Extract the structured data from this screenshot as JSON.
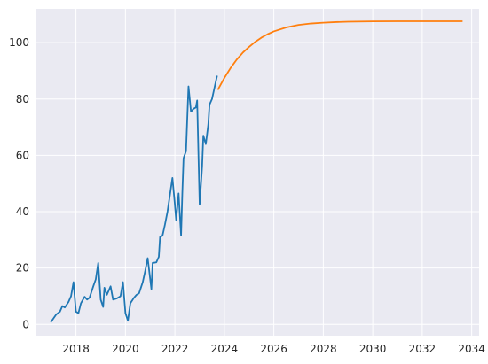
{
  "chart_data": {
    "type": "line",
    "title": "",
    "xlabel": "",
    "ylabel": "",
    "xlim": [
      2016.4,
      2034.3
    ],
    "ylim": [
      -4,
      112
    ],
    "grid": true,
    "legend": "none",
    "x_ticks": [
      2018,
      2020,
      2022,
      2024,
      2026,
      2028,
      2030,
      2032,
      2034
    ],
    "y_ticks": [
      0,
      20,
      40,
      60,
      80,
      100
    ],
    "series": [
      {
        "color": "#1f77b4",
        "points": [
          [
            2017.0,
            1
          ],
          [
            2017.2,
            3.5
          ],
          [
            2017.35,
            4.5
          ],
          [
            2017.45,
            6.5
          ],
          [
            2017.55,
            6
          ],
          [
            2017.7,
            8
          ],
          [
            2017.8,
            10
          ],
          [
            2017.9,
            15
          ],
          [
            2018.0,
            4.5
          ],
          [
            2018.1,
            4
          ],
          [
            2018.2,
            7.5
          ],
          [
            2018.35,
            9.8
          ],
          [
            2018.45,
            8.8
          ],
          [
            2018.55,
            9.5
          ],
          [
            2018.7,
            13.5
          ],
          [
            2018.8,
            16
          ],
          [
            2018.9,
            21.8
          ],
          [
            2019.0,
            8.8
          ],
          [
            2019.1,
            6.2
          ],
          [
            2019.15,
            13
          ],
          [
            2019.25,
            10.5
          ],
          [
            2019.4,
            13.5
          ],
          [
            2019.5,
            8.8
          ],
          [
            2019.65,
            9.2
          ],
          [
            2019.8,
            10
          ],
          [
            2019.9,
            15
          ],
          [
            2020.0,
            4
          ],
          [
            2020.1,
            1.3
          ],
          [
            2020.2,
            7.5
          ],
          [
            2020.35,
            9.5
          ],
          [
            2020.45,
            10.5
          ],
          [
            2020.55,
            11
          ],
          [
            2020.7,
            15
          ],
          [
            2020.8,
            19
          ],
          [
            2020.9,
            23.5
          ],
          [
            2021.05,
            12.5
          ],
          [
            2021.1,
            21.8
          ],
          [
            2021.25,
            22
          ],
          [
            2021.35,
            24
          ],
          [
            2021.4,
            31
          ],
          [
            2021.5,
            31.5
          ],
          [
            2021.6,
            35.5
          ],
          [
            2021.7,
            40
          ],
          [
            2021.8,
            46
          ],
          [
            2021.9,
            52
          ],
          [
            2022.0,
            42.5
          ],
          [
            2022.05,
            37
          ],
          [
            2022.15,
            46.5
          ],
          [
            2022.25,
            31.5
          ],
          [
            2022.3,
            46.5
          ],
          [
            2022.35,
            59
          ],
          [
            2022.45,
            61.5
          ],
          [
            2022.55,
            84.5
          ],
          [
            2022.65,
            75.5
          ],
          [
            2022.75,
            76.5
          ],
          [
            2022.85,
            77
          ],
          [
            2022.9,
            79.5
          ],
          [
            2023.0,
            42.5
          ],
          [
            2023.1,
            56
          ],
          [
            2023.15,
            67
          ],
          [
            2023.25,
            64
          ],
          [
            2023.35,
            71
          ],
          [
            2023.4,
            78
          ],
          [
            2023.5,
            80
          ],
          [
            2023.6,
            84
          ],
          [
            2023.7,
            88
          ]
        ]
      },
      {
        "color": "#ff7f0e",
        "points": [
          [
            2023.75,
            83.5
          ],
          [
            2024.0,
            87.5
          ],
          [
            2024.25,
            91
          ],
          [
            2024.5,
            94
          ],
          [
            2024.75,
            96.5
          ],
          [
            2025.0,
            98.5
          ],
          [
            2025.25,
            100.3
          ],
          [
            2025.5,
            101.8
          ],
          [
            2025.75,
            103
          ],
          [
            2026.0,
            104
          ],
          [
            2026.5,
            105.4
          ],
          [
            2027.0,
            106.3
          ],
          [
            2027.5,
            106.8
          ],
          [
            2028.0,
            107.1
          ],
          [
            2028.5,
            107.3
          ],
          [
            2029.0,
            107.45
          ],
          [
            2030.0,
            107.55
          ],
          [
            2031.0,
            107.6
          ],
          [
            2032.0,
            107.6
          ],
          [
            2033.0,
            107.6
          ],
          [
            2033.6,
            107.6
          ]
        ]
      }
    ]
  }
}
